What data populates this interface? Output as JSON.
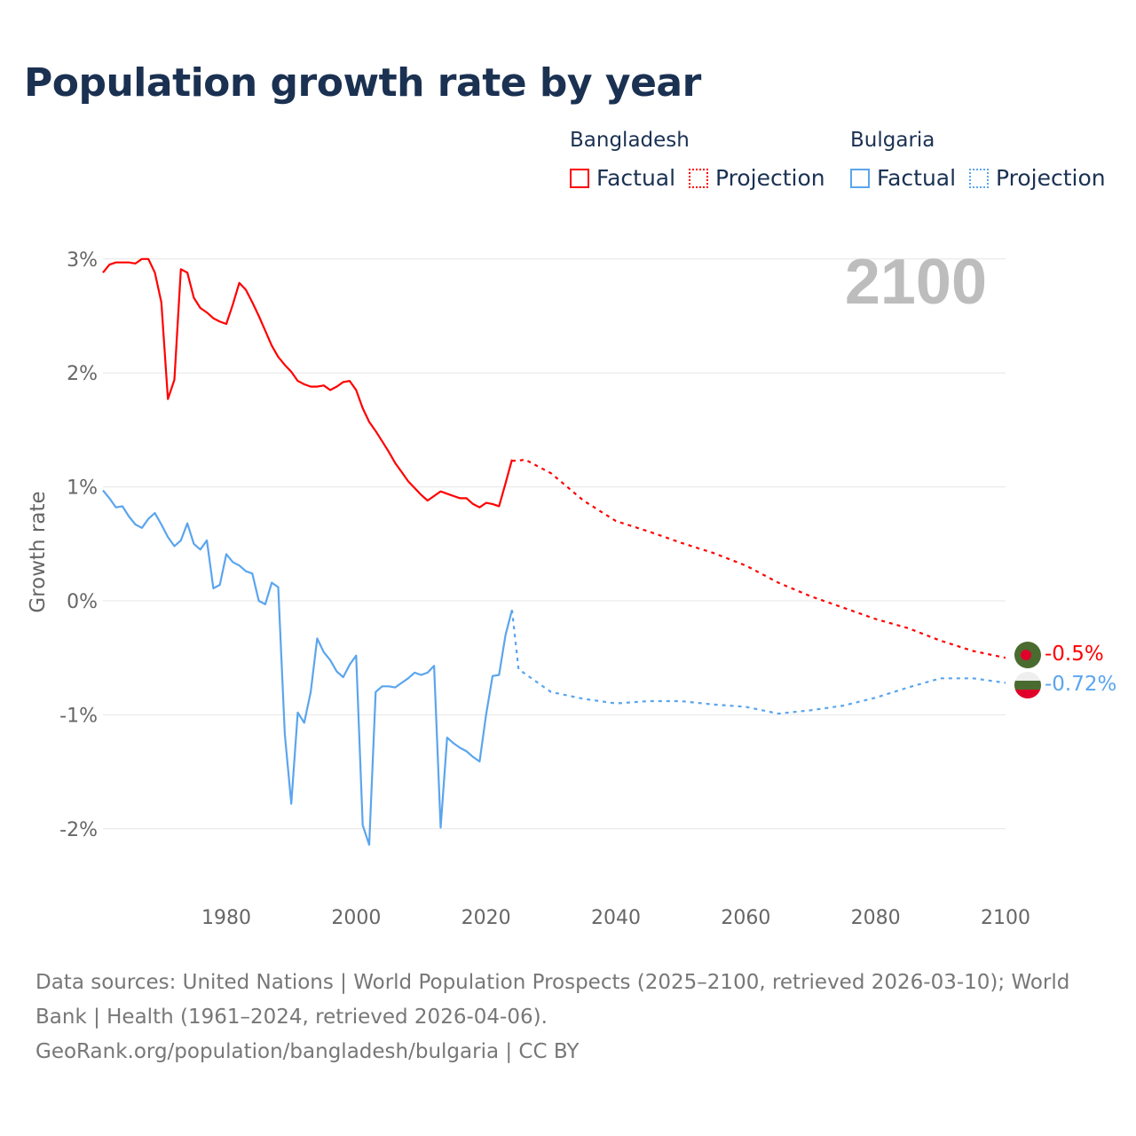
{
  "title": "Population growth rate by year",
  "legend": {
    "groups": [
      {
        "country": "Bangladesh",
        "factual": "Factual",
        "projection": "Projection",
        "color": "#ff0000"
      },
      {
        "country": "Bulgaria",
        "factual": "Factual",
        "projection": "Projection",
        "color": "#5aa5ee"
      }
    ]
  },
  "year_label": "2100",
  "end_labels": {
    "bangladesh": "-0.5%",
    "bulgaria": "-0.72%"
  },
  "footer": {
    "sources": "Data sources: United Nations | World Population Prospects (2025–2100, retrieved 2026-03-10); World Bank | Health (1961–2024, retrieved 2026-04-06).",
    "credit": "GeoRank.org/population/bangladesh/bulgaria | CC BY"
  },
  "chart_data": {
    "type": "line",
    "title": "Population growth rate by year",
    "xlabel": "",
    "ylabel": "Growth rate",
    "xlim": [
      1961,
      2100
    ],
    "ylim": [
      -2.5,
      3.2
    ],
    "xticks": [
      1980,
      2000,
      2020,
      2040,
      2060,
      2080,
      2100
    ],
    "yticks": [
      3,
      2,
      1,
      0,
      -1,
      -2
    ],
    "ytick_labels": [
      "3%",
      "2%",
      "1%",
      "0%",
      "-1%",
      "-2%"
    ],
    "grid": true,
    "series": [
      {
        "name": "Bangladesh Factual",
        "color": "#ff0000",
        "style": "solid",
        "x": [
          1961,
          1962,
          1963,
          1964,
          1965,
          1966,
          1967,
          1968,
          1969,
          1970,
          1971,
          1972,
          1973,
          1974,
          1975,
          1976,
          1977,
          1978,
          1979,
          1980,
          1981,
          1982,
          1983,
          1984,
          1985,
          1986,
          1987,
          1988,
          1989,
          1990,
          1991,
          1992,
          1993,
          1994,
          1995,
          1996,
          1997,
          1998,
          1999,
          2000,
          2001,
          2002,
          2003,
          2004,
          2005,
          2006,
          2007,
          2008,
          2009,
          2010,
          2011,
          2012,
          2013,
          2014,
          2015,
          2016,
          2017,
          2018,
          2019,
          2020,
          2021,
          2022,
          2023,
          2024
        ],
        "values": [
          2.88,
          2.95,
          2.97,
          2.97,
          2.97,
          2.96,
          3.0,
          3.0,
          2.88,
          2.62,
          1.77,
          1.94,
          2.91,
          2.88,
          2.66,
          2.57,
          2.53,
          2.48,
          2.45,
          2.43,
          2.6,
          2.79,
          2.73,
          2.62,
          2.5,
          2.37,
          2.24,
          2.14,
          2.07,
          2.01,
          1.93,
          1.9,
          1.88,
          1.88,
          1.89,
          1.85,
          1.88,
          1.92,
          1.93,
          1.85,
          1.69,
          1.57,
          1.49,
          1.4,
          1.31,
          1.21,
          1.13,
          1.05,
          0.99,
          0.93,
          0.88,
          0.92,
          0.96,
          0.94,
          0.92,
          0.9,
          0.9,
          0.85,
          0.82,
          0.86,
          0.85,
          0.83,
          1.03,
          1.24
        ]
      },
      {
        "name": "Bangladesh Projection",
        "color": "#ff0000",
        "style": "dotted",
        "x": [
          2024,
          2025,
          2026,
          2030,
          2035,
          2040,
          2045,
          2050,
          2055,
          2060,
          2065,
          2070,
          2075,
          2080,
          2085,
          2090,
          2095,
          2100
        ],
        "values": [
          1.23,
          1.23,
          1.24,
          1.12,
          0.88,
          0.7,
          0.61,
          0.51,
          0.42,
          0.31,
          0.16,
          0.04,
          -0.06,
          -0.16,
          -0.24,
          -0.35,
          -0.44,
          -0.5
        ]
      },
      {
        "name": "Bulgaria Factual",
        "color": "#5aa5ee",
        "style": "solid",
        "x": [
          1961,
          1962,
          1963,
          1964,
          1965,
          1966,
          1967,
          1968,
          1969,
          1970,
          1971,
          1972,
          1973,
          1974,
          1975,
          1976,
          1977,
          1978,
          1979,
          1980,
          1981,
          1982,
          1983,
          1984,
          1985,
          1986,
          1987,
          1988,
          1989,
          1990,
          1991,
          1992,
          1993,
          1994,
          1995,
          1996,
          1997,
          1998,
          1999,
          2000,
          2001,
          2002,
          2003,
          2004,
          2005,
          2006,
          2007,
          2008,
          2009,
          2010,
          2011,
          2012,
          2013,
          2014,
          2015,
          2016,
          2017,
          2018,
          2019,
          2020,
          2021,
          2022,
          2023,
          2024
        ],
        "values": [
          0.97,
          0.9,
          0.82,
          0.83,
          0.74,
          0.67,
          0.64,
          0.72,
          0.77,
          0.67,
          0.56,
          0.48,
          0.53,
          0.68,
          0.5,
          0.45,
          0.53,
          0.11,
          0.14,
          0.41,
          0.34,
          0.31,
          0.26,
          0.24,
          0.0,
          -0.03,
          0.16,
          0.12,
          -1.17,
          -1.78,
          -0.98,
          -1.07,
          -0.8,
          -0.33,
          -0.45,
          -0.52,
          -0.62,
          -0.67,
          -0.56,
          -0.48,
          -1.97,
          -2.14,
          -0.8,
          -0.75,
          -0.75,
          -0.76,
          -0.72,
          -0.68,
          -0.63,
          -0.65,
          -0.63,
          -0.57,
          -1.99,
          -1.2,
          -1.25,
          -1.29,
          -1.32,
          -1.37,
          -1.41,
          -1.0,
          -0.66,
          -0.65,
          -0.3,
          -0.08
        ]
      },
      {
        "name": "Bulgaria Projection",
        "color": "#5aa5ee",
        "style": "dotted",
        "x": [
          2024,
          2025,
          2027,
          2030,
          2035,
          2040,
          2045,
          2050,
          2055,
          2060,
          2065,
          2070,
          2075,
          2080,
          2085,
          2090,
          2095,
          2100
        ],
        "values": [
          -0.08,
          -0.6,
          -0.68,
          -0.8,
          -0.86,
          -0.9,
          -0.88,
          -0.88,
          -0.91,
          -0.93,
          -0.99,
          -0.96,
          -0.92,
          -0.85,
          -0.76,
          -0.68,
          -0.68,
          -0.72
        ]
      }
    ]
  }
}
